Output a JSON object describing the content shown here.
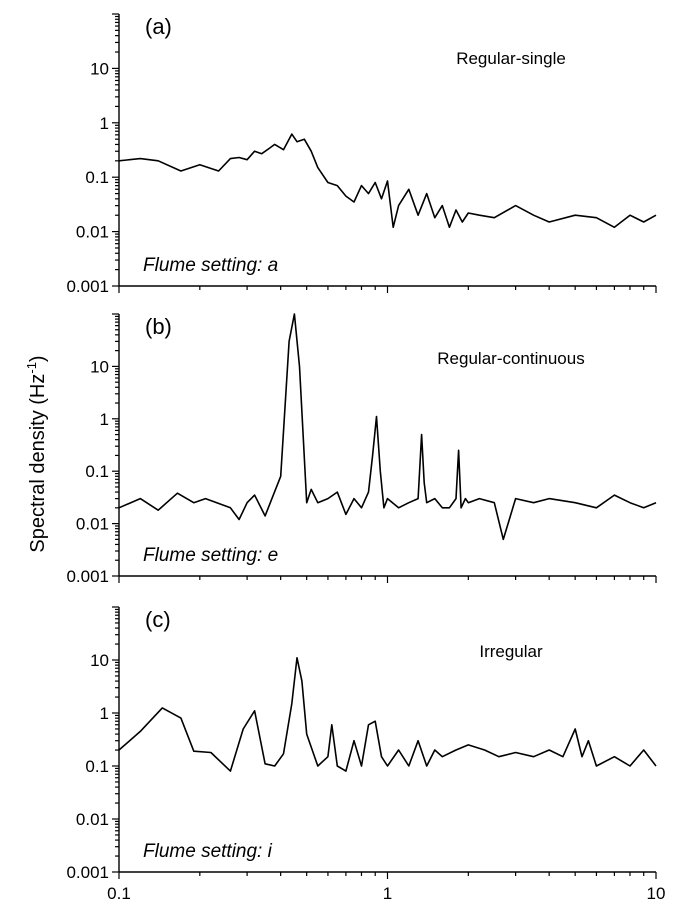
{
  "figure": {
    "ylabel": "Spectral density (Hz",
    "ylabel_sup": "-1",
    "ylabel_close": ")"
  },
  "chart_data": [
    {
      "type": "line",
      "panel_label": "(a)",
      "title": "Regular-single",
      "annotation": "Flume setting: a",
      "x_scale": "log",
      "y_scale": "log",
      "xlim": [
        0.1,
        10
      ],
      "ylim": [
        0.001,
        100
      ],
      "y_tick_labels": [
        "0.001",
        "0.01",
        "0.1",
        "1",
        "10"
      ],
      "x": [
        0.1,
        0.12,
        0.14,
        0.17,
        0.2,
        0.235,
        0.26,
        0.28,
        0.3,
        0.32,
        0.34,
        0.36,
        0.38,
        0.41,
        0.44,
        0.46,
        0.49,
        0.52,
        0.55,
        0.6,
        0.65,
        0.7,
        0.75,
        0.8,
        0.85,
        0.9,
        0.95,
        1.0,
        1.05,
        1.1,
        1.2,
        1.3,
        1.4,
        1.5,
        1.6,
        1.7,
        1.8,
        1.9,
        2.0,
        2.2,
        2.5,
        3.0,
        3.5,
        4.0,
        5.0,
        6.0,
        7.0,
        8.0,
        9.0,
        10.0
      ],
      "y": [
        0.2,
        0.22,
        0.2,
        0.13,
        0.17,
        0.13,
        0.22,
        0.23,
        0.21,
        0.3,
        0.27,
        0.33,
        0.4,
        0.32,
        0.62,
        0.45,
        0.5,
        0.3,
        0.15,
        0.08,
        0.07,
        0.045,
        0.035,
        0.07,
        0.05,
        0.08,
        0.04,
        0.085,
        0.012,
        0.03,
        0.06,
        0.02,
        0.05,
        0.018,
        0.03,
        0.012,
        0.025,
        0.015,
        0.022,
        0.02,
        0.018,
        0.03,
        0.02,
        0.015,
        0.02,
        0.018,
        0.012,
        0.02,
        0.015,
        0.02
      ]
    },
    {
      "type": "line",
      "panel_label": "(b)",
      "title": "Regular-continuous",
      "annotation": "Flume setting: e",
      "x_scale": "log",
      "y_scale": "log",
      "xlim": [
        0.1,
        10
      ],
      "ylim": [
        0.001,
        100
      ],
      "y_tick_labels": [
        "0.001",
        "0.01",
        "0.1",
        "1",
        "10"
      ],
      "x": [
        0.1,
        0.12,
        0.14,
        0.165,
        0.19,
        0.21,
        0.26,
        0.28,
        0.3,
        0.32,
        0.35,
        0.4,
        0.43,
        0.45,
        0.47,
        0.5,
        0.52,
        0.55,
        0.6,
        0.65,
        0.7,
        0.75,
        0.8,
        0.85,
        0.88,
        0.91,
        0.94,
        0.97,
        1.0,
        1.1,
        1.2,
        1.3,
        1.34,
        1.37,
        1.4,
        1.5,
        1.6,
        1.7,
        1.8,
        1.84,
        1.88,
        1.95,
        2.0,
        2.2,
        2.5,
        2.7,
        3.0,
        3.5,
        4.0,
        5.0,
        6.0,
        7.0,
        8.0,
        9.0,
        10.0
      ],
      "y": [
        0.02,
        0.03,
        0.018,
        0.038,
        0.025,
        0.03,
        0.02,
        0.012,
        0.025,
        0.035,
        0.014,
        0.08,
        30,
        100,
        10,
        0.025,
        0.045,
        0.025,
        0.03,
        0.04,
        0.015,
        0.03,
        0.02,
        0.04,
        0.2,
        1.1,
        0.1,
        0.02,
        0.03,
        0.02,
        0.025,
        0.03,
        0.5,
        0.06,
        0.025,
        0.03,
        0.02,
        0.02,
        0.03,
        0.25,
        0.02,
        0.03,
        0.025,
        0.03,
        0.025,
        0.005,
        0.03,
        0.025,
        0.03,
        0.025,
        0.02,
        0.035,
        0.025,
        0.02,
        0.025
      ]
    },
    {
      "type": "line",
      "panel_label": "(c)",
      "title": "Irregular",
      "annotation": "Flume setting: i",
      "x_scale": "log",
      "y_scale": "log",
      "xlim": [
        0.1,
        10
      ],
      "ylim": [
        0.001,
        100
      ],
      "x_tick_labels": [
        "0.1",
        "1",
        "10"
      ],
      "y_tick_labels": [
        "0.001",
        "0.01",
        "0.1",
        "1",
        "10"
      ],
      "x": [
        0.1,
        0.12,
        0.145,
        0.17,
        0.19,
        0.22,
        0.26,
        0.29,
        0.32,
        0.35,
        0.38,
        0.41,
        0.44,
        0.46,
        0.48,
        0.5,
        0.55,
        0.6,
        0.62,
        0.65,
        0.7,
        0.75,
        0.8,
        0.85,
        0.9,
        0.95,
        1.0,
        1.1,
        1.2,
        1.3,
        1.4,
        1.5,
        1.6,
        1.8,
        2.0,
        2.3,
        2.6,
        3.0,
        3.5,
        4.0,
        4.5,
        5.0,
        5.3,
        5.6,
        6.0,
        7.0,
        8.0,
        9.0,
        10.0
      ],
      "y": [
        0.2,
        0.45,
        1.25,
        0.8,
        0.19,
        0.18,
        0.08,
        0.5,
        1.1,
        0.11,
        0.1,
        0.17,
        1.5,
        11,
        4.0,
        0.4,
        0.1,
        0.15,
        0.6,
        0.1,
        0.08,
        0.3,
        0.1,
        0.6,
        0.7,
        0.15,
        0.1,
        0.2,
        0.1,
        0.3,
        0.1,
        0.2,
        0.15,
        0.2,
        0.25,
        0.2,
        0.15,
        0.18,
        0.15,
        0.2,
        0.15,
        0.5,
        0.15,
        0.3,
        0.1,
        0.15,
        0.1,
        0.2,
        0.1
      ]
    }
  ]
}
